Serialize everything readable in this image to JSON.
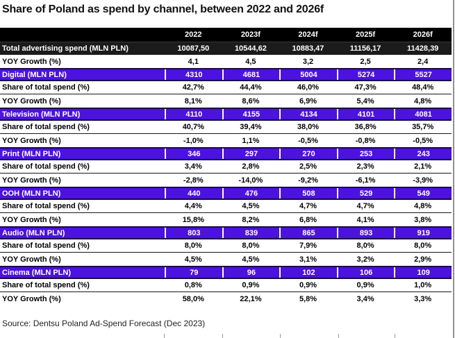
{
  "title": "Share of Poland as spend by channel, between 2022 and 2026f",
  "source_note": "Source: Dentsu Poland Ad-Spend Forecast (Dec 2023)",
  "colors": {
    "accent_purple": "#4C12DF",
    "purple_border": "#190A45",
    "header_black": "#000000",
    "total_row_black": "#1B1B1B",
    "edge_gridline": "#909090"
  },
  "chart_data": {
    "type": "table",
    "title": "Share of Poland as spend by channel, between 2022 and 2026f",
    "columns": [
      "2022",
      "2023f",
      "2024f",
      "2025f",
      "2026f"
    ],
    "rows": [
      {
        "label": "Total advertising spend (MLN PLN)",
        "kind": "total",
        "values": [
          "10087,50",
          "10544,62",
          "10883,47",
          "11156,17",
          "11428,39"
        ]
      },
      {
        "label": "YOY Growth (%)",
        "kind": "metric",
        "values": [
          "4,1",
          "4,5",
          "3,2",
          "2,5",
          "2,4"
        ]
      },
      {
        "label": "Digital (MLN PLN)",
        "kind": "channel",
        "values": [
          "4310",
          "4681",
          "5004",
          "5274",
          "5527"
        ]
      },
      {
        "label": "Share of total spend (%)",
        "kind": "metric",
        "values": [
          "42,7%",
          "44,4%",
          "46,0%",
          "47,3%",
          "48,4%"
        ]
      },
      {
        "label": "YOY Growth (%)",
        "kind": "metric",
        "values": [
          "8,1%",
          "8,6%",
          "6,9%",
          "5,4%",
          "4,8%"
        ]
      },
      {
        "label": "Television (MLN PLN)",
        "kind": "channel",
        "values": [
          "4110",
          "4155",
          "4134",
          "4101",
          "4081"
        ]
      },
      {
        "label": "Share of total spend (%)",
        "kind": "metric",
        "values": [
          "40,7%",
          "39,4%",
          "38,0%",
          "36,8%",
          "35,7%"
        ]
      },
      {
        "label": "YOY Growth (%)",
        "kind": "metric",
        "values": [
          "-1,0%",
          "1,1%",
          "-0,5%",
          "-0,8%",
          "-0,5%"
        ]
      },
      {
        "label": "Print (MLN PLN)",
        "kind": "channel",
        "values": [
          "346",
          "297",
          "270",
          "253",
          "243"
        ]
      },
      {
        "label": "Share of total spend (%)",
        "kind": "metric",
        "values": [
          "3,4%",
          "2,8%",
          "2,5%",
          "2,3%",
          "2,1%"
        ]
      },
      {
        "label": "YOY Growth (%)",
        "kind": "metric",
        "values": [
          "-2,8%",
          "-14,0%",
          "-9,2%",
          "-6,1%",
          "-3,9%"
        ]
      },
      {
        "label": "OOH (MLN PLN)",
        "kind": "channel",
        "values": [
          "440",
          "476",
          "508",
          "529",
          "549"
        ]
      },
      {
        "label": "Share of total spend (%)",
        "kind": "metric",
        "values": [
          "4,4%",
          "4,5%",
          "4,7%",
          "4,7%",
          "4,8%"
        ]
      },
      {
        "label": "YOY Growth (%)",
        "kind": "metric",
        "values": [
          "15,8%",
          "8,2%",
          "6,8%",
          "4,1%",
          "3,8%"
        ]
      },
      {
        "label": "Audio (MLN PLN)",
        "kind": "channel",
        "values": [
          "803",
          "839",
          "865",
          "893",
          "919"
        ]
      },
      {
        "label": "Share of total spend (%)",
        "kind": "metric",
        "values": [
          "8,0%",
          "8,0%",
          "7,9%",
          "8,0%",
          "8,0%"
        ]
      },
      {
        "label": "YOY Growth (%)",
        "kind": "metric",
        "values": [
          "4,5%",
          "4,5%",
          "3,1%",
          "3,2%",
          "2,9%"
        ]
      },
      {
        "label": "Cinema (MLN PLN)",
        "kind": "channel",
        "values": [
          "79",
          "96",
          "102",
          "106",
          "109"
        ]
      },
      {
        "label": "Share of total spend (%)",
        "kind": "metric",
        "values": [
          "0,8%",
          "0,9%",
          "0,9%",
          "0,9%",
          "1,0%"
        ]
      },
      {
        "label": "YOY Growth (%)",
        "kind": "metric",
        "values": [
          "58,0%",
          "22,1%",
          "5,8%",
          "3,4%",
          "3,3%"
        ]
      }
    ],
    "source": "Source: Dentsu Poland Ad-Spend Forecast (Dec 2023)"
  }
}
